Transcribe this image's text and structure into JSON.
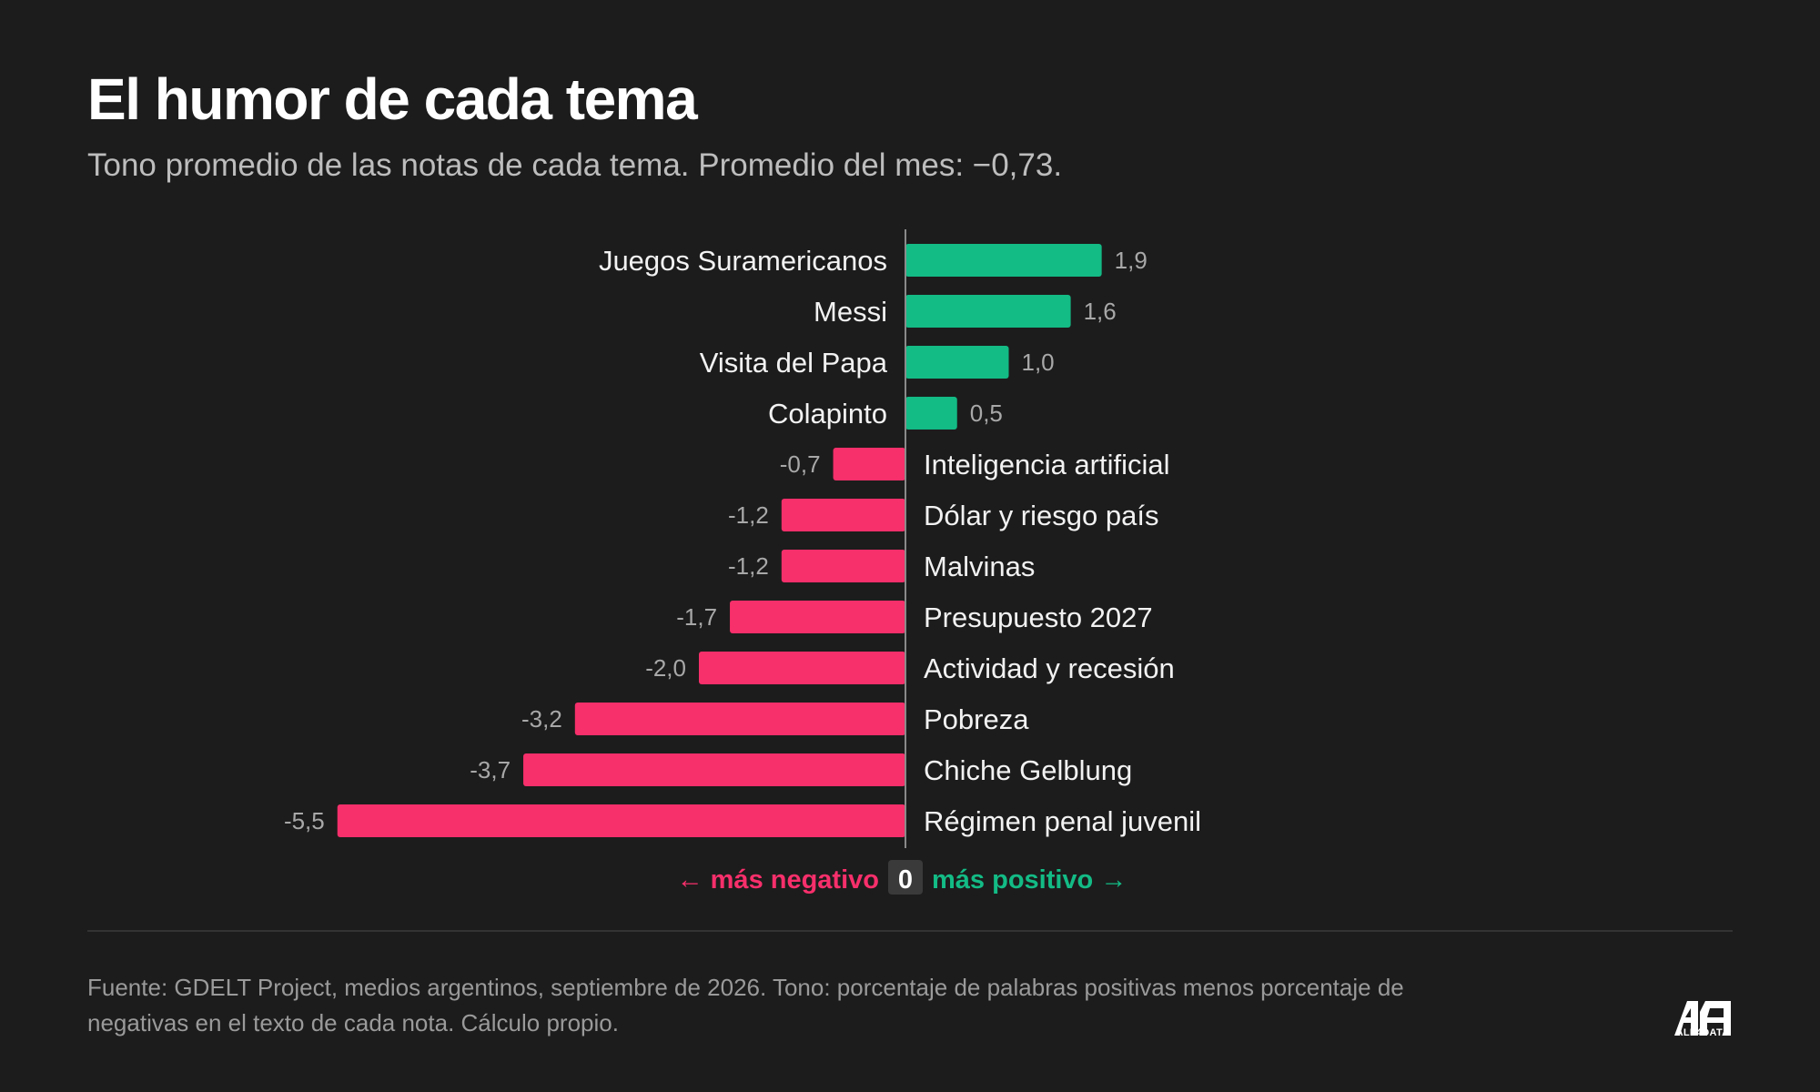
{
  "header": {
    "title": "El humor de cada tema",
    "subtitle": "Tono promedio de las notas de cada tema. Promedio del mes: −0,73."
  },
  "chart_data": {
    "type": "bar",
    "orientation": "horizontal",
    "categories": [
      "Juegos Suramericanos",
      "Messi",
      "Visita del Papa",
      "Colapinto",
      "Inteligencia artificial",
      "Dólar y riesgo país",
      "Malvinas",
      "Presupuesto 2027",
      "Actividad y recesión",
      "Pobreza",
      "Chiche Gelblung",
      "Régimen penal juvenil"
    ],
    "values": [
      1.9,
      1.6,
      1.0,
      0.5,
      -0.7,
      -1.2,
      -1.2,
      -1.7,
      -2.0,
      -3.2,
      -3.7,
      -5.5
    ],
    "value_labels": [
      "1,9",
      "1,6",
      "1,0",
      "0,5",
      "-0,7",
      "-1,2",
      "-1,2",
      "-1,7",
      "-2,0",
      "-3,2",
      "-3,7",
      "-5,5"
    ],
    "xlim": [
      -5.5,
      1.9
    ],
    "grid": false,
    "legend": {
      "negative_label": "← más negativo",
      "zero_label": "0",
      "positive_label": "más positivo →"
    },
    "colors": {
      "positive": "#13bb85",
      "negative": "#f72f6b",
      "axis": "#8a8a8a",
      "category_text": "#f2f2f2",
      "value_text": "#a8a8a8",
      "zero_badge_bg": "#3a3a3a"
    }
  },
  "footer": {
    "source": "Fuente: GDELT Project, medios argentinos, septiembre de 2026. Tono: porcentaje de palabras positivas menos porcentaje de negativas en el texto de cada nota. Cálculo propio.",
    "logo_text": "ALL4DATA"
  }
}
